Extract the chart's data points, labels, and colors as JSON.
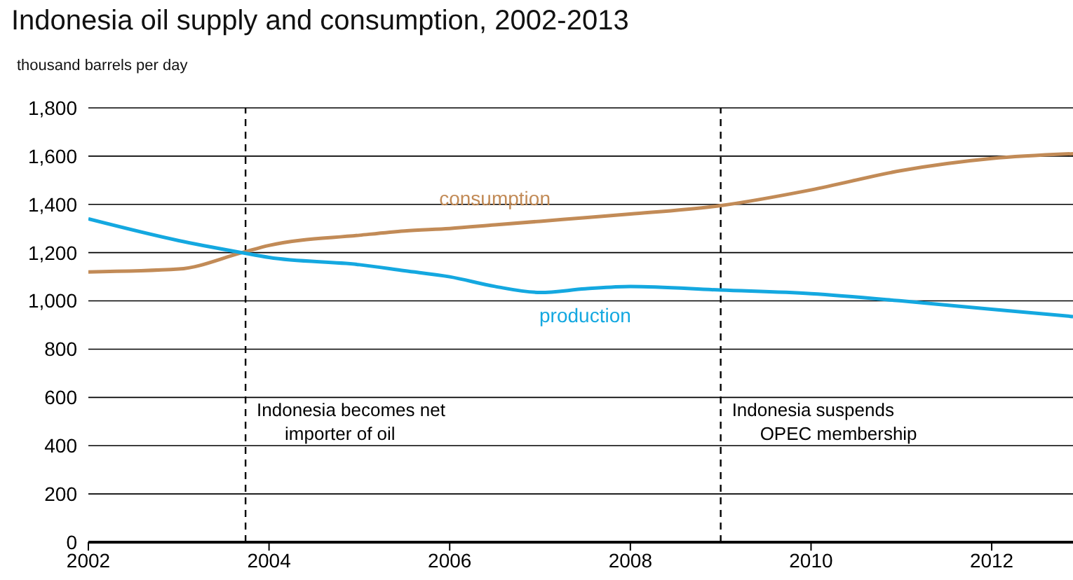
{
  "chart_data": {
    "type": "line",
    "title": "Indonesia oil supply and consumption, 2002-2013",
    "ylabel": "thousand barrels per day",
    "x": [
      2002,
      2003,
      2003.7,
      2004,
      2005,
      2005.5,
      2006,
      2006.5,
      2007,
      2007.5,
      2008,
      2009,
      2010,
      2011,
      2012,
      2012.9
    ],
    "series": [
      {
        "name": "consumption",
        "color": "#c28b57",
        "values": [
          1120,
          1132,
          1200,
          1230,
          1272,
          1290,
          1300,
          1315,
          1330,
          1345,
          1360,
          1395,
          1460,
          1540,
          1590,
          1610
        ]
      },
      {
        "name": "production",
        "color": "#14a8e0",
        "values": [
          1340,
          1250,
          1200,
          1180,
          1150,
          1125,
          1100,
          1060,
          1035,
          1050,
          1060,
          1045,
          1030,
          1000,
          965,
          935
        ]
      }
    ],
    "xlim": [
      2002,
      2012.9
    ],
    "xticks": [
      2002,
      2004,
      2006,
      2008,
      2010,
      2012
    ],
    "ylim": [
      0,
      1800
    ],
    "yticks": [
      0,
      200,
      400,
      600,
      800,
      {
        "value": 1000,
        "label": "1,000"
      },
      {
        "value": 1200,
        "label": "1,200"
      },
      {
        "value": 1400,
        "label": "1,400"
      },
      {
        "value": 1600,
        "label": "1,600"
      },
      {
        "value": 1800,
        "label": "1,800"
      }
    ],
    "grid": "y",
    "marker": "none",
    "line_style": "solid",
    "ref_lines": [
      {
        "axis": "x",
        "value": 2003.74,
        "label": "Indonesia becomes net\nimporter of oil",
        "color": "#000000",
        "line_style": "dashed"
      },
      {
        "axis": "x",
        "value": 2009,
        "label": "Indonesia suspends\nOPEC membership",
        "color": "#000000",
        "line_style": "dashed"
      }
    ]
  }
}
